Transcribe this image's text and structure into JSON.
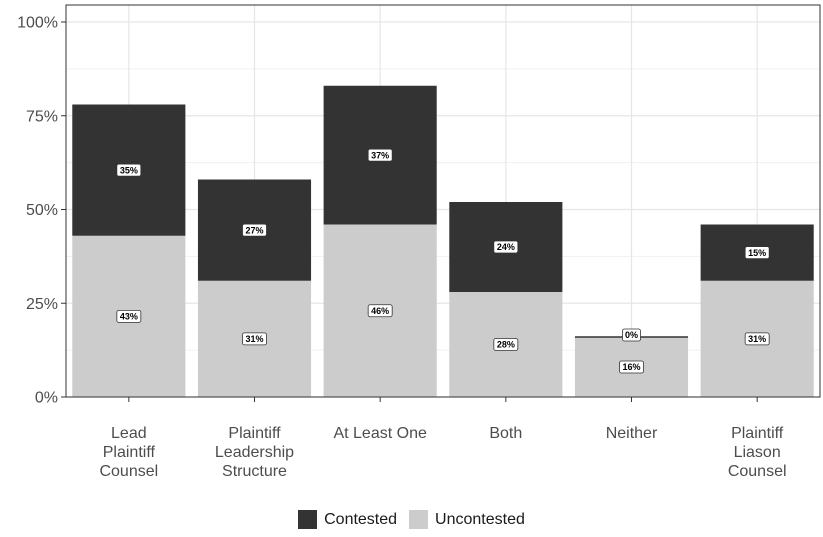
{
  "chart_data": {
    "type": "bar",
    "stacked": true,
    "categories": [
      [
        "Lead",
        "Plaintiff",
        "Counsel"
      ],
      [
        "Plaintiff",
        "Leadership",
        "Structure"
      ],
      [
        "At Least One"
      ],
      [
        "Both"
      ],
      [
        "Neither"
      ],
      [
        "Plaintiff",
        "Liason",
        "Counsel"
      ]
    ],
    "series": [
      {
        "name": "Uncontested",
        "color": "#cccccc",
        "values": [
          43,
          31,
          46,
          28,
          16,
          31
        ],
        "labels": [
          "43%",
          "31%",
          "46%",
          "28%",
          "16%",
          "31%"
        ]
      },
      {
        "name": "Contested",
        "color": "#333333",
        "values": [
          35,
          27,
          37,
          24,
          0,
          15
        ],
        "labels": [
          "35%",
          "27%",
          "37%",
          "24%",
          "0%",
          "15%"
        ]
      }
    ],
    "ylim": [
      0,
      100
    ],
    "yticks": [
      0,
      25,
      50,
      75,
      100
    ],
    "ytick_labels": [
      "0%",
      "25%",
      "50%",
      "75%",
      "100%"
    ],
    "grid": true,
    "legend_position": "bottom",
    "legend": [
      {
        "label": "Contested",
        "color": "#333333"
      },
      {
        "label": "Uncontested",
        "color": "#cccccc"
      }
    ]
  }
}
